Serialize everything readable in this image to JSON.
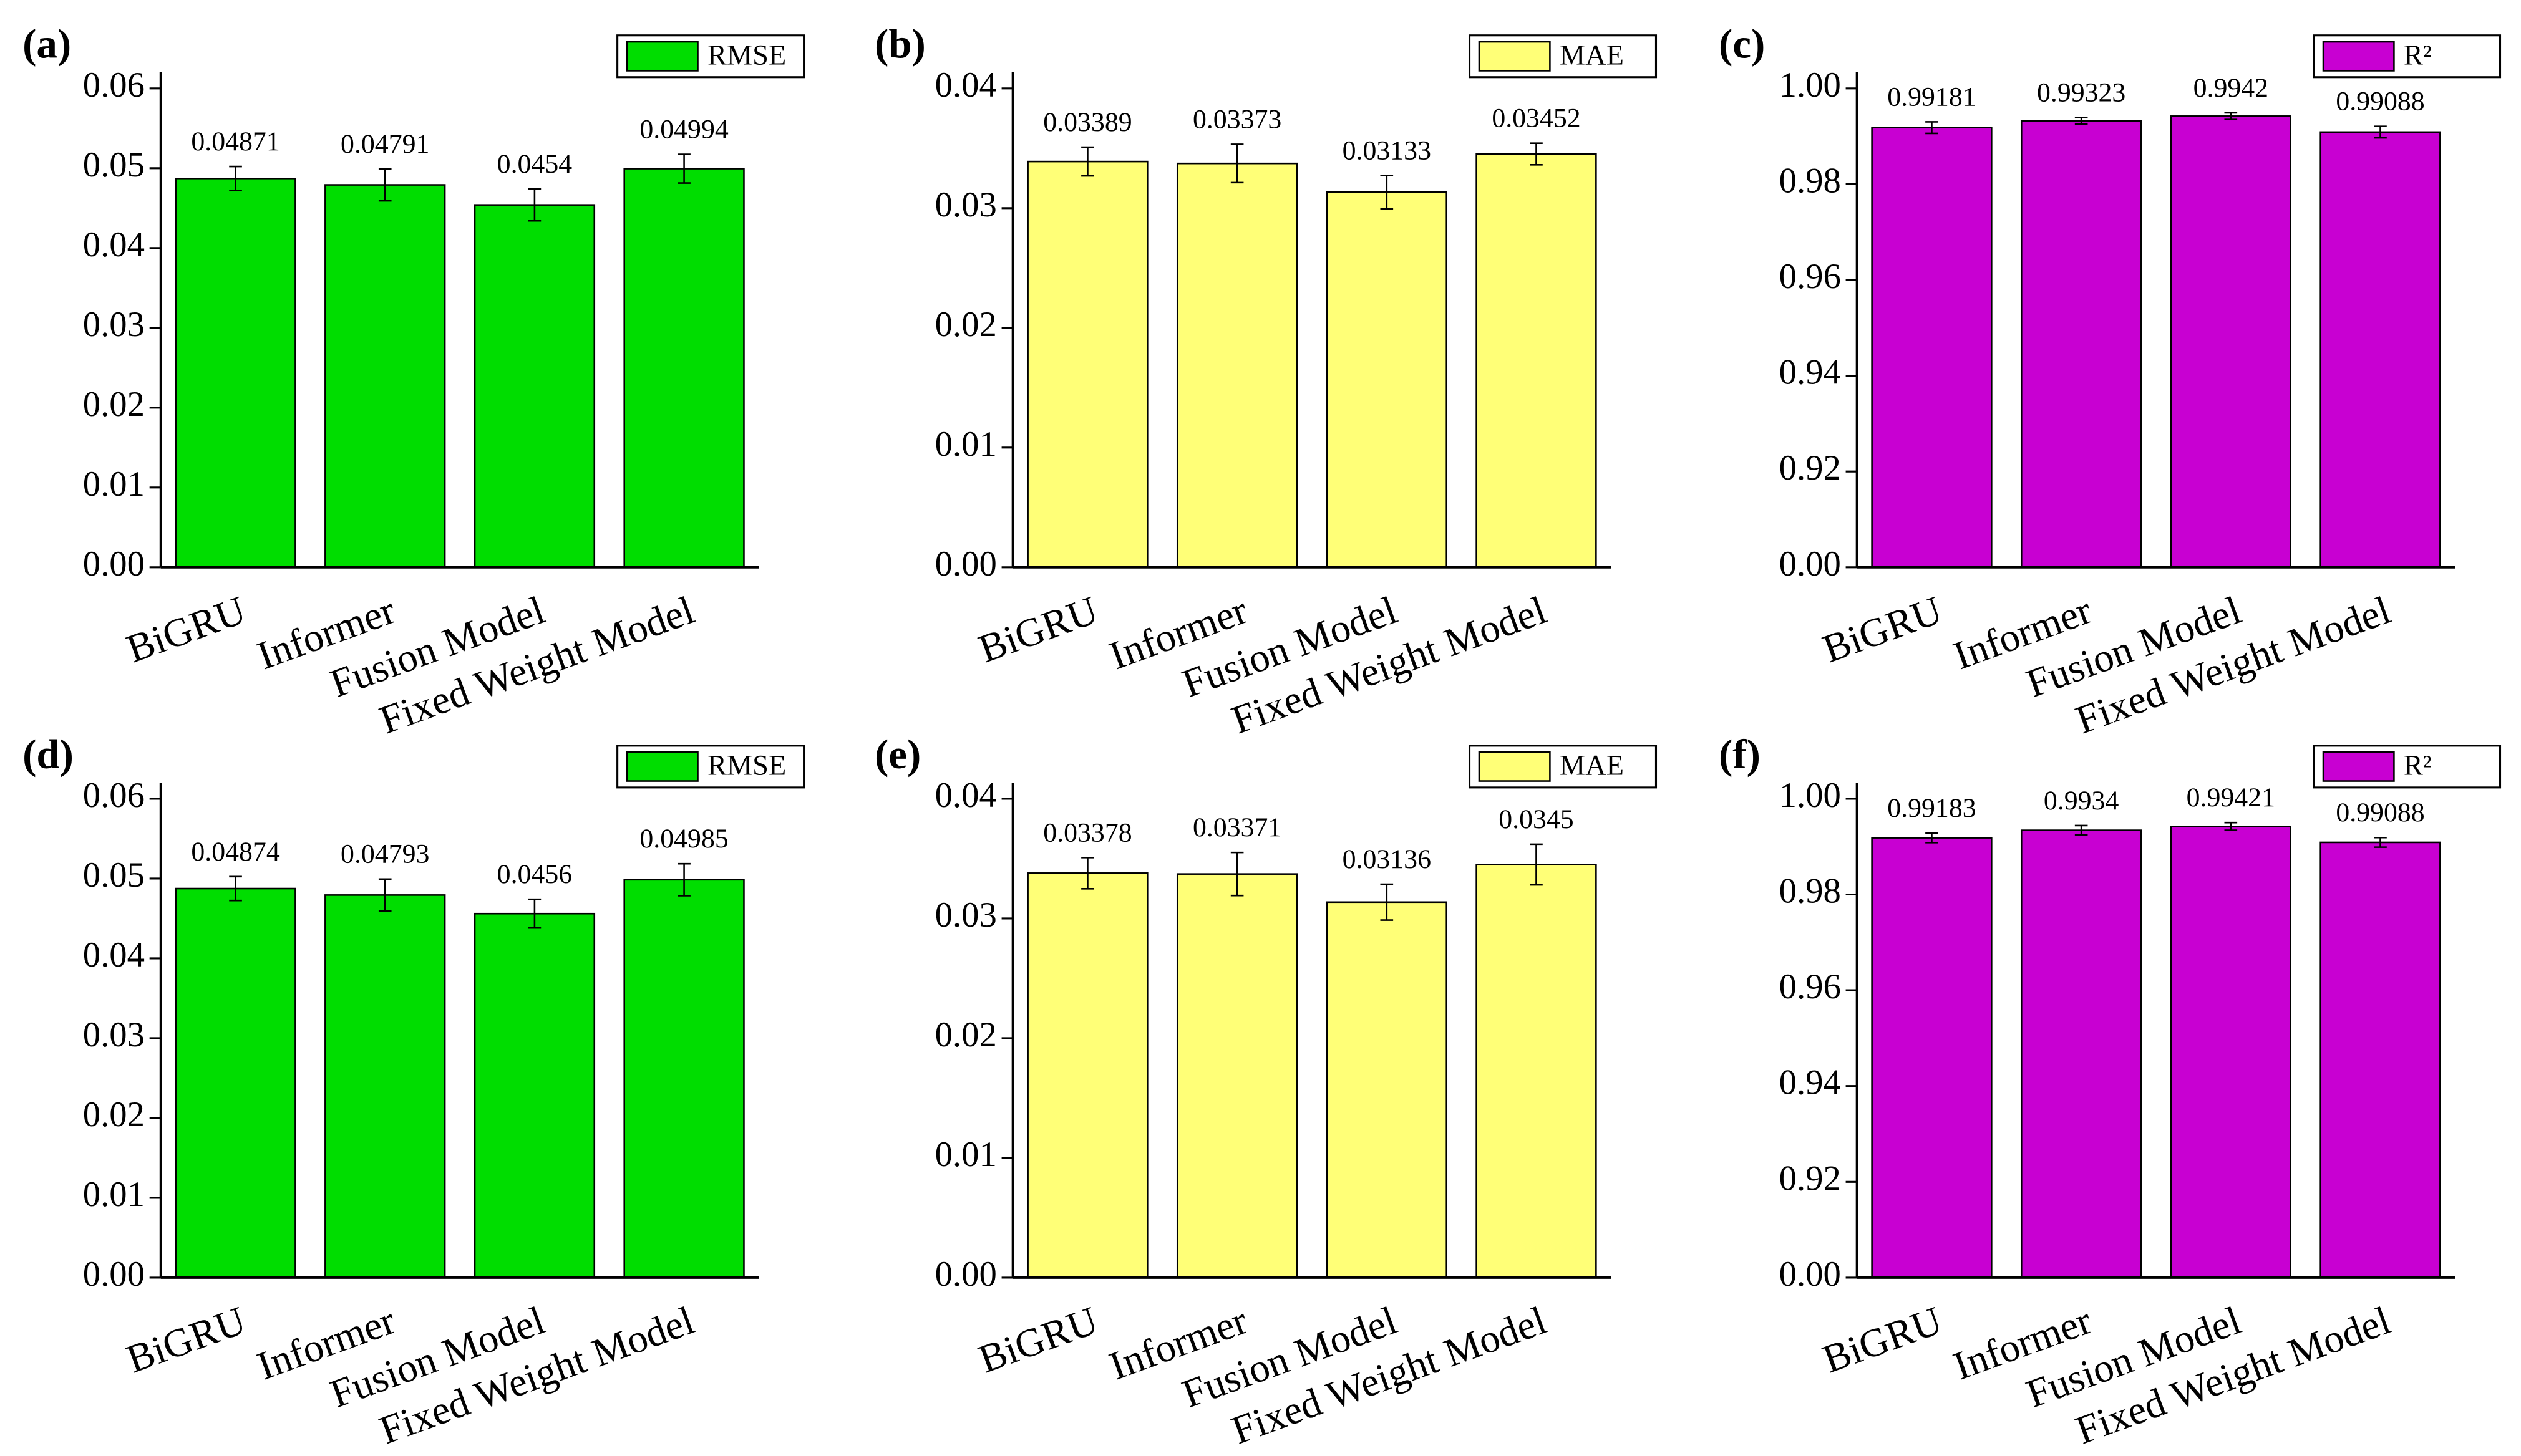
{
  "chart_data": [
    {
      "type": "bar",
      "panel_label": "(a)",
      "categories": [
        "BiGRU",
        "Informer",
        "Fusion Model",
        "Fixed Weight Model"
      ],
      "series": [
        {
          "name": "RMSE",
          "color": "#00dd00",
          "values": [
            0.04871,
            0.04791,
            0.0454,
            0.04994
          ],
          "errors": [
            0.0015,
            0.002,
            0.002,
            0.0018
          ]
        }
      ],
      "ylim": [
        0,
        0.06
      ],
      "yticks": [
        {
          "value": 0,
          "label": "0.00"
        },
        0.01,
        0.02,
        0.03,
        0.04,
        0.05,
        0.06
      ],
      "legend": "upper right"
    },
    {
      "type": "bar",
      "panel_label": "(b)",
      "categories": [
        "BiGRU",
        "Informer",
        "Fusion Model",
        "Fixed Weight Model"
      ],
      "series": [
        {
          "name": "MAE",
          "color": "#ffff77",
          "values": [
            0.03389,
            0.03373,
            0.03133,
            0.03452
          ],
          "errors": [
            0.0012,
            0.0016,
            0.0014,
            0.0009
          ]
        }
      ],
      "ylim": [
        0,
        0.04
      ],
      "yticks": [
        {
          "value": 0,
          "label": "0.00"
        },
        0.01,
        0.02,
        0.03,
        0.04
      ],
      "legend": "upper right"
    },
    {
      "type": "bar",
      "panel_label": "(c)",
      "categories": [
        "BiGRU",
        "Informer",
        "Fusion Model",
        "Fixed Weight Model"
      ],
      "series": [
        {
          "name": "R²",
          "color": "#c800d2",
          "values": [
            0.99181,
            0.99323,
            0.9942,
            0.99088
          ],
          "errors": [
            0.0012,
            0.0007,
            0.0007,
            0.0012
          ]
        }
      ],
      "ylim": [
        0,
        1
      ],
      "ybreak": [
        0,
        0.9
      ],
      "yticks": [
        {
          "value": 0,
          "label": "0.00"
        },
        0.92,
        0.94,
        0.96,
        0.98,
        {
          "value": 1,
          "label": "1.00"
        }
      ],
      "legend": "upper right"
    },
    {
      "type": "bar",
      "panel_label": "(d)",
      "categories": [
        "BiGRU",
        "Informer",
        "Fusion Model",
        "Fixed Weight Model"
      ],
      "series": [
        {
          "name": "RMSE",
          "color": "#00dd00",
          "values": [
            0.04874,
            0.04793,
            0.0456,
            0.04985
          ],
          "errors": [
            0.0015,
            0.002,
            0.0018,
            0.002
          ]
        }
      ],
      "ylim": [
        0,
        0.06
      ],
      "yticks": [
        {
          "value": 0,
          "label": "0.00"
        },
        0.01,
        0.02,
        0.03,
        0.04,
        0.05,
        0.06
      ],
      "legend": "upper right"
    },
    {
      "type": "bar",
      "panel_label": "(e)",
      "categories": [
        "BiGRU",
        "Informer",
        "Fusion Model",
        "Fixed Weight Model"
      ],
      "series": [
        {
          "name": "MAE",
          "color": "#ffff77",
          "values": [
            0.03378,
            0.03371,
            0.03136,
            0.0345
          ],
          "errors": [
            0.0013,
            0.0018,
            0.0015,
            0.0017
          ]
        }
      ],
      "ylim": [
        0,
        0.04
      ],
      "yticks": [
        {
          "value": 0,
          "label": "0.00"
        },
        0.01,
        0.02,
        0.03,
        0.04
      ],
      "legend": "upper right"
    },
    {
      "type": "bar",
      "panel_label": "(f)",
      "categories": [
        "BiGRU",
        "Informer",
        "Fusion Model",
        "Fixed Weight Model"
      ],
      "series": [
        {
          "name": "R²",
          "color": "#c800d2",
          "values": [
            0.99183,
            0.9934,
            0.99421,
            0.99088
          ],
          "errors": [
            0.001,
            0.001,
            0.0008,
            0.001
          ]
        }
      ],
      "ylim": [
        0,
        1
      ],
      "ybreak": [
        0,
        0.9
      ],
      "yticks": [
        {
          "value": 0,
          "label": "0.00"
        },
        0.92,
        0.94,
        0.96,
        0.98,
        {
          "value": 1,
          "label": "1.00"
        }
      ],
      "legend": "upper right"
    }
  ]
}
